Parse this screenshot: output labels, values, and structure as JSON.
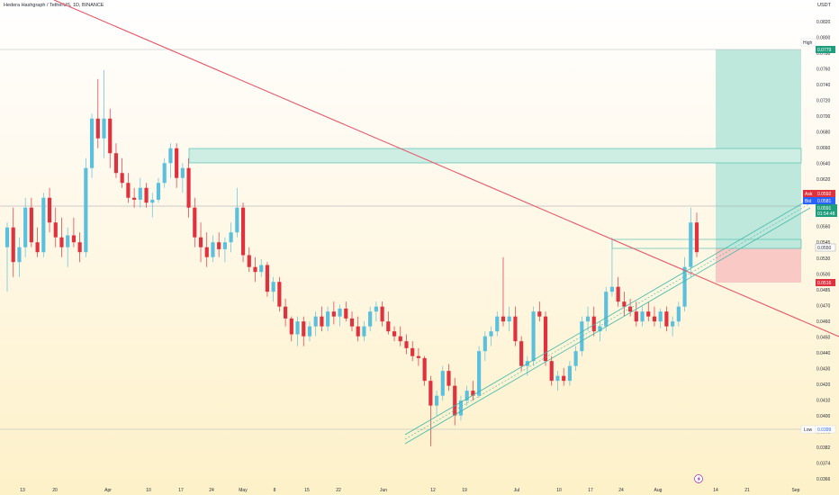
{
  "header": {
    "symbol": "Hedera Hashgraph / TetherUS, 1D, BINANCE",
    "currency": "USDT"
  },
  "colors": {
    "up": "#5bc0de",
    "down": "#e0313f",
    "trendline": "#e8566a",
    "channel": "#3fb8a8",
    "target_zone": "#bfe8dc",
    "stop_zone": "#f9c9c6",
    "resistance_zone": "#cfeee3"
  },
  "chart_data": {
    "type": "candlestick",
    "ylim": [
      0.0366,
      0.0828
    ],
    "y_ticks": [
      "0.0820",
      "0.0800",
      "0.0780",
      "0.0760",
      "0.0740",
      "0.0720",
      "0.0700",
      "0.0680",
      "0.0660",
      "0.0640",
      "0.0620",
      "0.0600",
      "0.0580",
      "0.0560",
      "0.0545",
      "0.0530",
      "0.0500",
      "0.0485",
      "0.0470",
      "0.0460",
      "0.0450",
      "0.0440",
      "0.0430",
      "0.0420",
      "0.0410",
      "0.0400",
      "0.0391",
      "0.0382",
      "0.0374",
      "0.0366"
    ],
    "x_ticks": [
      "13",
      "20",
      "Apr",
      "10",
      "17",
      "24",
      "May",
      "8",
      "15",
      "22",
      "Jun",
      "12",
      "19",
      "Jul",
      "10",
      "17",
      "24",
      "Aug",
      "14",
      "21",
      "Sep"
    ],
    "price_labels": {
      "high_tag": "High",
      "high": "0.0779",
      "low_tag": "Low",
      "low": "0.0399",
      "ask_tag": "Ask",
      "ask": "0.0592",
      "bid_tag": "Bid",
      "bid": "0.0581",
      "last": "0.0591",
      "countdown": "01:54:48",
      "entry": "0.0550",
      "stop": "0.0516"
    },
    "series": [
      {
        "values": [
          [
            0.06,
            0.0625,
            0.0555,
            0.062
          ],
          [
            0.062,
            0.064,
            0.057,
            0.0585
          ],
          [
            0.0585,
            0.061,
            0.057,
            0.06
          ],
          [
            0.06,
            0.065,
            0.059,
            0.064
          ],
          [
            0.064,
            0.065,
            0.06,
            0.0605
          ],
          [
            0.0605,
            0.062,
            0.059,
            0.0595
          ],
          [
            0.0595,
            0.0655,
            0.059,
            0.065
          ],
          [
            0.065,
            0.066,
            0.0615,
            0.0625
          ],
          [
            0.0625,
            0.064,
            0.06,
            0.061
          ],
          [
            0.061,
            0.063,
            0.059,
            0.06
          ],
          [
            0.06,
            0.062,
            0.058,
            0.0612
          ],
          [
            0.0612,
            0.063,
            0.06,
            0.0605
          ],
          [
            0.0605,
            0.0615,
            0.0585,
            0.0595
          ],
          [
            0.0595,
            0.069,
            0.059,
            0.068
          ],
          [
            0.068,
            0.0735,
            0.067,
            0.073
          ],
          [
            0.073,
            0.077,
            0.07,
            0.071
          ],
          [
            0.071,
            0.0779,
            0.069,
            0.073
          ],
          [
            0.073,
            0.074,
            0.068,
            0.0695
          ],
          [
            0.0695,
            0.0705,
            0.067,
            0.0675
          ],
          [
            0.0675,
            0.069,
            0.066,
            0.0665
          ],
          [
            0.0665,
            0.0675,
            0.0645,
            0.065
          ],
          [
            0.065,
            0.066,
            0.064,
            0.0648
          ],
          [
            0.0648,
            0.067,
            0.064,
            0.066
          ],
          [
            0.066,
            0.0665,
            0.064,
            0.0645
          ],
          [
            0.0645,
            0.0655,
            0.063,
            0.0648
          ],
          [
            0.0648,
            0.067,
            0.0645,
            0.0665
          ],
          [
            0.0665,
            0.069,
            0.066,
            0.0685
          ],
          [
            0.0685,
            0.0705,
            0.067,
            0.07
          ],
          [
            0.07,
            0.0705,
            0.066,
            0.067
          ],
          [
            0.067,
            0.0685,
            0.0655,
            0.068
          ],
          [
            0.068,
            0.069,
            0.063,
            0.064
          ],
          [
            0.064,
            0.065,
            0.06,
            0.061
          ],
          [
            0.061,
            0.0625,
            0.0585,
            0.06
          ],
          [
            0.06,
            0.0615,
            0.058,
            0.059
          ],
          [
            0.059,
            0.0612,
            0.0585,
            0.0605
          ],
          [
            0.0605,
            0.0615,
            0.059,
            0.0598
          ],
          [
            0.0598,
            0.061,
            0.0585,
            0.0605
          ],
          [
            0.0605,
            0.0625,
            0.0595,
            0.0615
          ],
          [
            0.0615,
            0.066,
            0.061,
            0.064
          ],
          [
            0.064,
            0.0645,
            0.0585,
            0.0592
          ],
          [
            0.0592,
            0.06,
            0.0575,
            0.058
          ],
          [
            0.058,
            0.059,
            0.0565,
            0.0575
          ],
          [
            0.0575,
            0.0588,
            0.057,
            0.0582
          ],
          [
            0.0582,
            0.0585,
            0.055,
            0.0555
          ],
          [
            0.0555,
            0.057,
            0.0545,
            0.0565
          ],
          [
            0.0565,
            0.057,
            0.0535,
            0.054
          ],
          [
            0.054,
            0.0548,
            0.052,
            0.0528
          ],
          [
            0.0528,
            0.053,
            0.0505,
            0.0512
          ],
          [
            0.0512,
            0.053,
            0.05,
            0.0525
          ],
          [
            0.0525,
            0.053,
            0.05,
            0.051
          ],
          [
            0.051,
            0.0525,
            0.0505,
            0.052
          ],
          [
            0.052,
            0.0535,
            0.051,
            0.053
          ],
          [
            0.053,
            0.054,
            0.0515,
            0.052
          ],
          [
            0.052,
            0.054,
            0.0515,
            0.0535
          ],
          [
            0.0535,
            0.0545,
            0.0522,
            0.053
          ],
          [
            0.053,
            0.0542,
            0.052,
            0.0538
          ],
          [
            0.0538,
            0.0545,
            0.0525,
            0.0528
          ],
          [
            0.0528,
            0.0535,
            0.0515,
            0.052
          ],
          [
            0.052,
            0.053,
            0.0505,
            0.051
          ],
          [
            0.051,
            0.0525,
            0.0505,
            0.052
          ],
          [
            0.052,
            0.054,
            0.0515,
            0.0535
          ],
          [
            0.0535,
            0.0545,
            0.0525,
            0.054
          ],
          [
            0.054,
            0.0545,
            0.052,
            0.0525
          ],
          [
            0.0525,
            0.0535,
            0.0512,
            0.0515
          ],
          [
            0.0515,
            0.052,
            0.0505,
            0.051
          ],
          [
            0.051,
            0.052,
            0.05,
            0.0505
          ],
          [
            0.0505,
            0.0512,
            0.0492,
            0.0498
          ],
          [
            0.0498,
            0.0505,
            0.0485,
            0.049
          ],
          [
            0.049,
            0.0498,
            0.048,
            0.0488
          ],
          [
            0.0488,
            0.049,
            0.046,
            0.0465
          ],
          [
            0.0465,
            0.047,
            0.0399,
            0.044
          ],
          [
            0.044,
            0.0455,
            0.043,
            0.045
          ],
          [
            0.045,
            0.048,
            0.0445,
            0.0475
          ],
          [
            0.0475,
            0.0482,
            0.0455,
            0.046
          ],
          [
            0.046,
            0.0468,
            0.042,
            0.043
          ],
          [
            0.043,
            0.045,
            0.0425,
            0.0445
          ],
          [
            0.0445,
            0.046,
            0.044,
            0.0455
          ],
          [
            0.0455,
            0.0465,
            0.0445,
            0.045
          ],
          [
            0.045,
            0.05,
            0.0448,
            0.0495
          ],
          [
            0.0495,
            0.0515,
            0.0485,
            0.051
          ],
          [
            0.051,
            0.052,
            0.05,
            0.0515
          ],
          [
            0.0515,
            0.0535,
            0.051,
            0.053
          ],
          [
            0.053,
            0.059,
            0.052,
            0.0525
          ],
          [
            0.0525,
            0.054,
            0.0515,
            0.053
          ],
          [
            0.053,
            0.054,
            0.05,
            0.0505
          ],
          [
            0.0505,
            0.051,
            0.0475,
            0.048
          ],
          [
            0.048,
            0.049,
            0.047,
            0.0485
          ],
          [
            0.0485,
            0.054,
            0.048,
            0.0535
          ],
          [
            0.0535,
            0.0545,
            0.0525,
            0.053
          ],
          [
            0.053,
            0.0535,
            0.048,
            0.0485
          ],
          [
            0.0485,
            0.049,
            0.046,
            0.0465
          ],
          [
            0.0465,
            0.0475,
            0.0455,
            0.047
          ],
          [
            0.047,
            0.0478,
            0.046,
            0.0465
          ],
          [
            0.0465,
            0.0485,
            0.046,
            0.048
          ],
          [
            0.048,
            0.05,
            0.0475,
            0.0495
          ],
          [
            0.0495,
            0.053,
            0.049,
            0.0525
          ],
          [
            0.0525,
            0.054,
            0.0515,
            0.053
          ],
          [
            0.053,
            0.054,
            0.051,
            0.0515
          ],
          [
            0.0515,
            0.0525,
            0.0505,
            0.052
          ],
          [
            0.052,
            0.056,
            0.0515,
            0.0555
          ],
          [
            0.0555,
            0.061,
            0.055,
            0.056
          ],
          [
            0.056,
            0.057,
            0.054,
            0.0545
          ],
          [
            0.0545,
            0.0555,
            0.053,
            0.054
          ],
          [
            0.054,
            0.0548,
            0.053,
            0.0535
          ],
          [
            0.0535,
            0.0545,
            0.052,
            0.0525
          ],
          [
            0.0525,
            0.054,
            0.052,
            0.0535
          ],
          [
            0.0535,
            0.0545,
            0.0525,
            0.053
          ],
          [
            0.053,
            0.054,
            0.052,
            0.0525
          ],
          [
            0.0525,
            0.0538,
            0.0518,
            0.0535
          ],
          [
            0.0535,
            0.054,
            0.0515,
            0.052
          ],
          [
            0.052,
            0.053,
            0.051,
            0.0525
          ],
          [
            0.0525,
            0.0545,
            0.052,
            0.054
          ],
          [
            0.054,
            0.059,
            0.0535,
            0.058
          ],
          [
            0.058,
            0.064,
            0.057,
            0.0625
          ],
          [
            0.0625,
            0.0635,
            0.059,
            0.0595
          ]
        ]
      }
    ]
  }
}
